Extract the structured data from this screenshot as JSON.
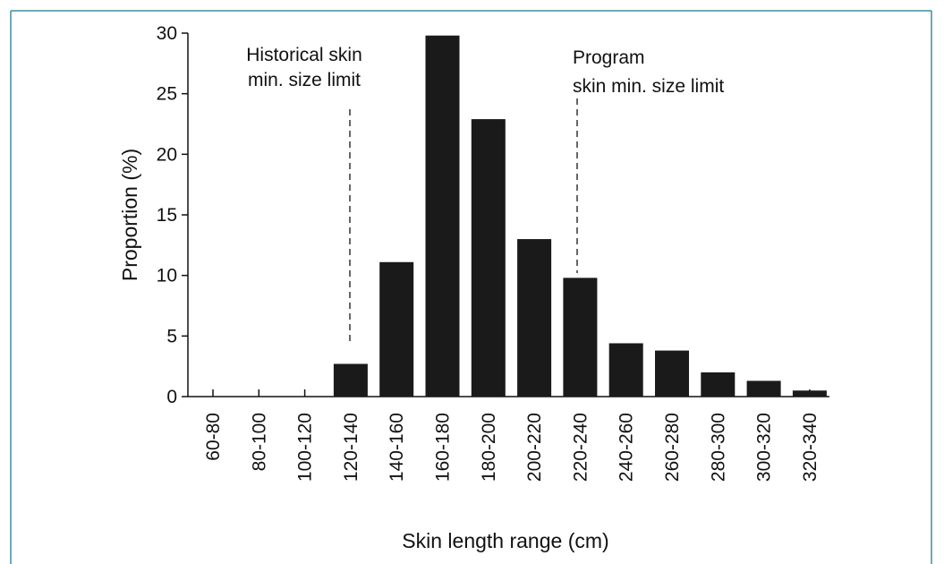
{
  "chart_data": {
    "type": "bar",
    "categories": [
      "60-80",
      "80-100",
      "100-120",
      "120-140",
      "140-160",
      "160-180",
      "180-200",
      "200-220",
      "220-240",
      "240-260",
      "260-280",
      "280-300",
      "300-320",
      "320-340"
    ],
    "values": [
      0,
      0,
      0,
      2.7,
      11.1,
      29.8,
      22.9,
      13.0,
      9.8,
      4.4,
      3.8,
      2.0,
      1.3,
      0.5
    ],
    "color": "#1a1a1a",
    "xlabel": "Skin length range (cm)",
    "ylabel": "Proportion (%)",
    "ylim": [
      0,
      30
    ],
    "yticks": [
      0,
      5,
      10,
      15,
      20,
      25,
      30
    ],
    "annotations": [
      {
        "lines": [
          "Historical skin",
          "min. size limit"
        ]
      },
      {
        "lines": [
          "Program",
          "skin min. size limit"
        ]
      }
    ]
  }
}
